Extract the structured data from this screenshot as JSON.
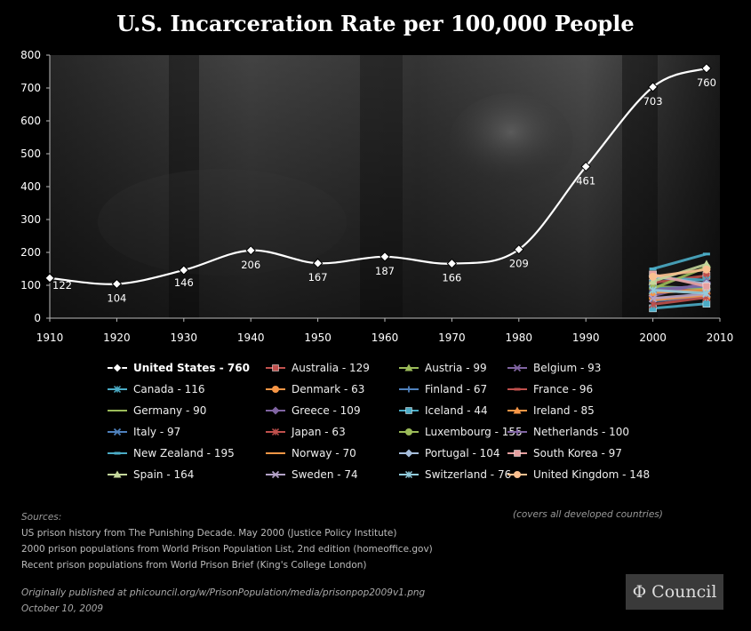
{
  "title": "U.S. Incarceration Rate per 100,000 People",
  "chart_data": {
    "type": "line",
    "title": "U.S. Incarceration Rate per 100,000 People",
    "xlabel": "",
    "ylabel": "",
    "xlim": [
      1910,
      2010
    ],
    "ylim": [
      0,
      800
    ],
    "x_ticks": [
      1910,
      1920,
      1930,
      1940,
      1950,
      1960,
      1970,
      1980,
      1990,
      2000,
      2010
    ],
    "y_ticks": [
      0,
      100,
      200,
      300,
      400,
      500,
      600,
      700,
      800
    ],
    "grid": false,
    "legend_position": "bottom",
    "us_series": {
      "name": "United States - 760",
      "color": "#ffffff",
      "x": [
        1910,
        1920,
        1930,
        1940,
        1950,
        1960,
        1970,
        1980,
        1990,
        2000,
        2008
      ],
      "values": [
        122,
        104,
        146,
        206,
        167,
        187,
        166,
        209,
        461,
        703,
        760
      ],
      "labels": [
        "122",
        "104",
        "146",
        "206",
        "167",
        "187",
        "166",
        "209",
        "461",
        "703",
        "760"
      ]
    },
    "country_series": [
      {
        "name": "Australia - 129",
        "color": "#c0504d",
        "marker": "square",
        "x": [
          2000,
          2008
        ],
        "values": [
          108,
          129
        ]
      },
      {
        "name": "Austria - 99",
        "color": "#9bbb59",
        "marker": "triangle",
        "x": [
          2000,
          2008
        ],
        "values": [
          84,
          99
        ]
      },
      {
        "name": "Belgium - 93",
        "color": "#8064a2",
        "marker": "x",
        "x": [
          2000,
          2008
        ],
        "values": [
          80,
          93
        ]
      },
      {
        "name": "Canada - 116",
        "color": "#4bacc6",
        "marker": "asterisk",
        "x": [
          2000,
          2008
        ],
        "values": [
          123,
          116
        ]
      },
      {
        "name": "Denmark - 63",
        "color": "#f79646",
        "marker": "circle",
        "x": [
          2000,
          2008
        ],
        "values": [
          61,
          63
        ]
      },
      {
        "name": "Finland - 67",
        "color": "#4f81bd",
        "marker": "plus",
        "x": [
          2000,
          2008
        ],
        "values": [
          52,
          67
        ]
      },
      {
        "name": "France - 96",
        "color": "#c0504d",
        "marker": "dash",
        "x": [
          2000,
          2008
        ],
        "values": [
          80,
          96
        ]
      },
      {
        "name": "Germany - 90",
        "color": "#9bbb59",
        "marker": "none",
        "x": [
          2000,
          2008
        ],
        "values": [
          96,
          90
        ]
      },
      {
        "name": "Greece - 109",
        "color": "#8064a2",
        "marker": "diamond",
        "x": [
          2000,
          2008
        ],
        "values": [
          68,
          109
        ]
      },
      {
        "name": "Iceland - 44",
        "color": "#4bacc6",
        "marker": "square",
        "x": [
          2000,
          2008
        ],
        "values": [
          30,
          44
        ]
      },
      {
        "name": "Ireland - 85",
        "color": "#f79646",
        "marker": "triangle",
        "x": [
          2000,
          2008
        ],
        "values": [
          78,
          85
        ]
      },
      {
        "name": "Italy - 97",
        "color": "#4f81bd",
        "marker": "x",
        "x": [
          2000,
          2008
        ],
        "values": [
          89,
          97
        ]
      },
      {
        "name": "Japan - 63",
        "color": "#c0504d",
        "marker": "asterisk",
        "x": [
          2000,
          2008
        ],
        "values": [
          42,
          63
        ]
      },
      {
        "name": "Luxembourg - 155",
        "color": "#9bbb59",
        "marker": "circle",
        "x": [
          2000,
          2008
        ],
        "values": [
          90,
          155
        ]
      },
      {
        "name": "Netherlands - 100",
        "color": "#8064a2",
        "marker": "plus",
        "x": [
          2000,
          2008
        ],
        "values": [
          85,
          100
        ]
      },
      {
        "name": "New Zealand - 195",
        "color": "#4bacc6",
        "marker": "dash",
        "x": [
          2000,
          2008
        ],
        "values": [
          150,
          195
        ]
      },
      {
        "name": "Norway - 70",
        "color": "#f79646",
        "marker": "none",
        "x": [
          2000,
          2008
        ],
        "values": [
          55,
          70
        ]
      },
      {
        "name": "Portugal - 104",
        "color": "#a6bddb",
        "marker": "diamond",
        "x": [
          2000,
          2008
        ],
        "values": [
          128,
          104
        ]
      },
      {
        "name": "South Korea - 97",
        "color": "#e6a0a0",
        "marker": "square",
        "x": [
          2000,
          2008
        ],
        "values": [
          133,
          97
        ]
      },
      {
        "name": "Spain - 164",
        "color": "#c4d79b",
        "marker": "triangle",
        "x": [
          2000,
          2008
        ],
        "values": [
          112,
          164
        ]
      },
      {
        "name": "Sweden - 74",
        "color": "#b3a2c7",
        "marker": "x",
        "x": [
          2000,
          2008
        ],
        "values": [
          60,
          74
        ]
      },
      {
        "name": "Switzerland - 76",
        "color": "#93cddd",
        "marker": "asterisk",
        "x": [
          2000,
          2008
        ],
        "values": [
          85,
          76
        ]
      },
      {
        "name": "United Kingdom - 148",
        "color": "#fac090",
        "marker": "circle",
        "x": [
          2000,
          2008
        ],
        "values": [
          126,
          148
        ]
      }
    ]
  },
  "sources": {
    "heading": "Sources:",
    "lines": [
      "US prison history from The Punishing Decade. May 2000 (Justice Policy Institute)",
      "2000 prison populations from World Prison Population List, 2nd edition (homeoffice.gov)",
      "Recent prison populations from World Prison Brief (King's College London)"
    ]
  },
  "note": "(covers all developed countries)",
  "published": {
    "line1": "Originally published at phicouncil.org/w/PrisonPopulation/media/prisonpop2009v1.png",
    "line2": "October 10, 2009"
  },
  "logo": "Φ Council"
}
